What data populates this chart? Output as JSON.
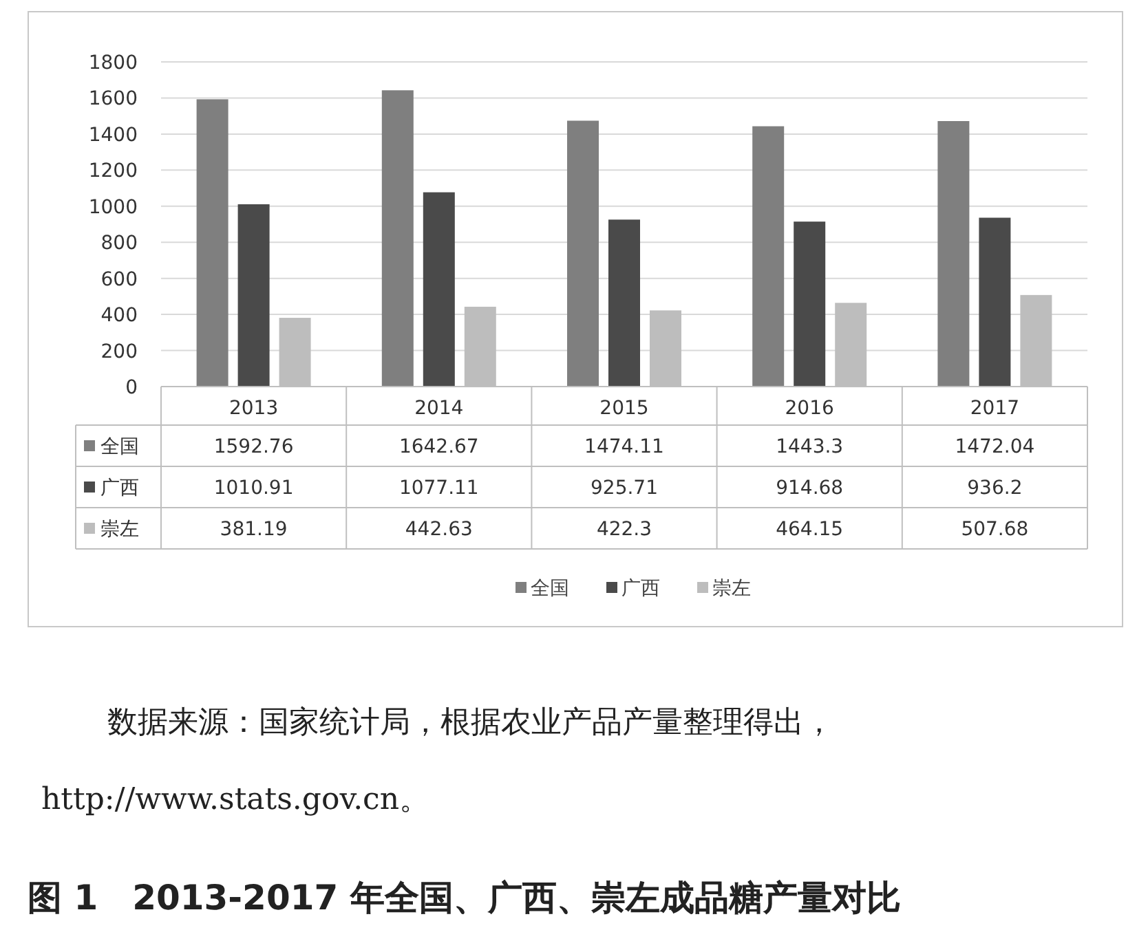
{
  "chart_data": {
    "type": "bar",
    "title": "图 1　2013-2017 年全国、广西、崇左成品糖产量对比",
    "annotations": [
      "数据来源：国家统计局，根据农业产品产量整理得出，http://www.stats.gov.cn。"
    ],
    "categories": [
      "2013",
      "2014",
      "2015",
      "2016",
      "2017"
    ],
    "series": [
      {
        "name": "全国",
        "color": "#7f7f7f",
        "values": [
          1592.76,
          1642.67,
          1474.11,
          1443.3,
          1472.04
        ]
      },
      {
        "name": "广西",
        "color": "#4a4a4a",
        "values": [
          1010.91,
          1077.11,
          925.71,
          914.68,
          936.2
        ]
      },
      {
        "name": "崇左",
        "color": "#bdbdbd",
        "values": [
          381.19,
          442.63,
          422.3,
          464.15,
          507.68
        ]
      }
    ],
    "ylim": [
      0,
      1800
    ],
    "yticks": [
      0,
      200,
      400,
      600,
      800,
      1000,
      1200,
      1400,
      1600,
      1800
    ],
    "grid": "y",
    "legend": "bottom",
    "data_labels": true
  }
}
